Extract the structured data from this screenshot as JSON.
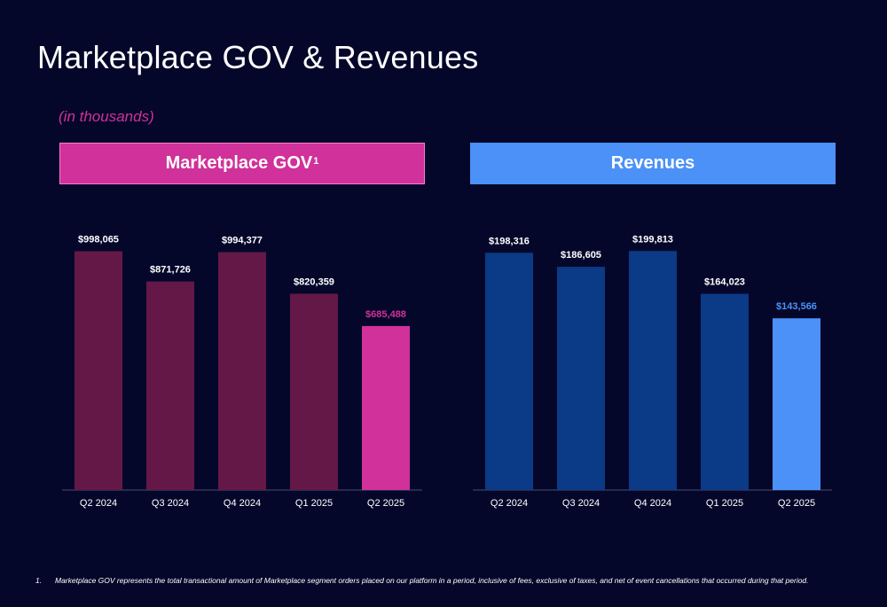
{
  "page": {
    "title": "Marketplace GOV & Revenues",
    "subtitle": "(in thousands)"
  },
  "colors": {
    "background": "#05072a",
    "gov_bar": "#641847",
    "gov_highlight": "#d0319a",
    "rev_bar": "#0b3a86",
    "rev_highlight": "#4b91f7",
    "axis": "#4a4d6e"
  },
  "chart_data": [
    {
      "type": "bar",
      "title": "Marketplace GOV",
      "title_superscript": "1",
      "categories": [
        "Q2 2024",
        "Q3 2024",
        "Q4 2024",
        "Q1 2025",
        "Q2 2025"
      ],
      "values": [
        998065,
        871726,
        994377,
        820359,
        685488
      ],
      "data_labels": [
        "$998,065",
        "$871,726",
        "$994,377",
        "$820,359",
        "$685,488"
      ],
      "highlight_index": 4,
      "xlabel": "",
      "ylabel": "",
      "ylim": [
        0,
        1000000
      ],
      "grid": false
    },
    {
      "type": "bar",
      "title": "Revenues",
      "categories": [
        "Q2 2024",
        "Q3 2024",
        "Q4 2024",
        "Q1 2025",
        "Q2 2025"
      ],
      "values": [
        198316,
        186605,
        199813,
        164023,
        143566
      ],
      "data_labels": [
        "$198,316",
        "$186,605",
        "$199,813",
        "$164,023",
        "$143,566"
      ],
      "highlight_index": 4,
      "xlabel": "",
      "ylabel": "",
      "ylim": [
        0,
        200000
      ],
      "grid": false
    }
  ],
  "footnote": {
    "number": "1.",
    "text": "Marketplace GOV represents the total transactional amount of Marketplace segment orders placed on our platform in a period, inclusive of fees, exclusive of taxes, and net of event cancellations that occurred during that period."
  }
}
